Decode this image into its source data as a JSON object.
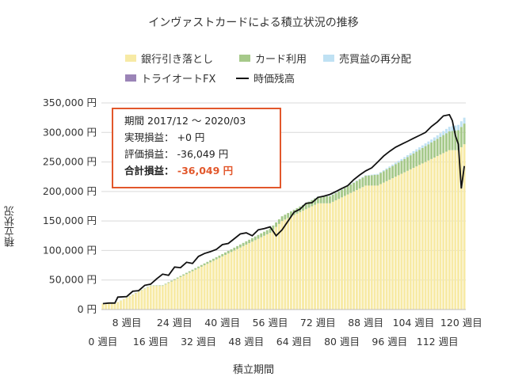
{
  "title": "インヴァストカードによる積立状況の推移",
  "legend": {
    "bank": "銀行引き落とし",
    "card": "カード利用",
    "dividend": "売買益の再分配",
    "fx": "トライオートFX",
    "value": "時価残高"
  },
  "colors": {
    "bank": "#f7eaa5",
    "card": "#a6c98a",
    "dividend": "#bfe1f3",
    "fx": "#9b84b7",
    "line": "#111111",
    "highlight": "#e2572b"
  },
  "info": {
    "period_label": "期間",
    "period": "2017/12 ～ 2020/03",
    "realized_label": "実現損益：",
    "realized": "+0 円",
    "unrealized_label": "評価損益：",
    "unrealized": "-36,049 円",
    "total_label": "合計損益：",
    "total": "-36,049 円"
  },
  "chart_data": {
    "type": "bar",
    "title": "インヴァストカードによる積立状況の推移",
    "xlabel": "積立期間",
    "ylabel": "積立状況",
    "ylim": [
      0,
      350000
    ],
    "yticks": [
      "0 円",
      "50,000 円",
      "100,000 円",
      "150,000 円",
      "200,000 円",
      "250,000 円",
      "300,000 円",
      "350,000 円"
    ],
    "xticks_row1": [
      "8 週目",
      "24 週目",
      "40 週目",
      "56 週目",
      "72 週目",
      "88 週目",
      "104 週目",
      "120 週目"
    ],
    "xticks_row2": [
      "0 週目",
      "16 週目",
      "32 週目",
      "48 週目",
      "64 週目",
      "80 週目",
      "96 週目",
      "112 週目"
    ],
    "grid": true,
    "legend_position": "top",
    "weeks": 122,
    "x_range": [
      0,
      121
    ],
    "series": [
      {
        "name": "銀行引き落とし",
        "kind": "stacked-bar",
        "knots_x": [
          0,
          4,
          8,
          12,
          16,
          20,
          24,
          28,
          32,
          36,
          40,
          44,
          48,
          52,
          56,
          60,
          64,
          68,
          72,
          76,
          80,
          84,
          88,
          92,
          96,
          100,
          104,
          108,
          112,
          116,
          119,
          121
        ],
        "knots_y": [
          10000,
          10000,
          20000,
          30000,
          40000,
          40000,
          50000,
          60000,
          70000,
          80000,
          90000,
          100000,
          110000,
          120000,
          130000,
          150000,
          160000,
          170000,
          180000,
          180000,
          190000,
          200000,
          210000,
          210000,
          220000,
          230000,
          240000,
          250000,
          260000,
          270000,
          270000,
          280000
        ]
      },
      {
        "name": "カード利用",
        "kind": "stacked-bar",
        "knots_x": [
          0,
          20,
          40,
          60,
          80,
          100,
          110,
          121
        ],
        "knots_y": [
          0,
          1000,
          4000,
          8000,
          13000,
          22000,
          28000,
          35000
        ]
      },
      {
        "name": "売買益の再分配",
        "kind": "stacked-bar",
        "knots_x": [
          0,
          60,
          90,
          100,
          110,
          121
        ],
        "knots_y": [
          0,
          0,
          1000,
          3000,
          5000,
          10000
        ]
      },
      {
        "name": "時価残高",
        "kind": "line",
        "x": [
          0,
          2,
          4,
          5,
          8,
          10,
          12,
          14,
          16,
          18,
          20,
          22,
          24,
          26,
          28,
          30,
          32,
          34,
          36,
          38,
          40,
          42,
          44,
          46,
          48,
          50,
          52,
          54,
          56,
          58,
          60,
          62,
          64,
          66,
          68,
          70,
          72,
          74,
          76,
          78,
          80,
          82,
          84,
          86,
          88,
          90,
          92,
          94,
          96,
          98,
          100,
          102,
          104,
          106,
          108,
          110,
          112,
          114,
          116,
          117,
          118,
          119,
          120,
          121
        ],
        "y": [
          10000,
          11000,
          11000,
          21000,
          22000,
          31000,
          32000,
          41000,
          43000,
          52000,
          60000,
          58000,
          72000,
          71000,
          80000,
          78000,
          90000,
          95000,
          98000,
          102000,
          110000,
          112000,
          120000,
          128000,
          130000,
          125000,
          135000,
          137000,
          140000,
          125000,
          135000,
          150000,
          165000,
          170000,
          180000,
          181000,
          190000,
          192000,
          195000,
          200000,
          205000,
          210000,
          220000,
          228000,
          235000,
          240000,
          250000,
          260000,
          268000,
          275000,
          280000,
          285000,
          290000,
          295000,
          300000,
          310000,
          318000,
          328000,
          330000,
          320000,
          295000,
          280000,
          205000,
          243000
        ]
      }
    ]
  }
}
